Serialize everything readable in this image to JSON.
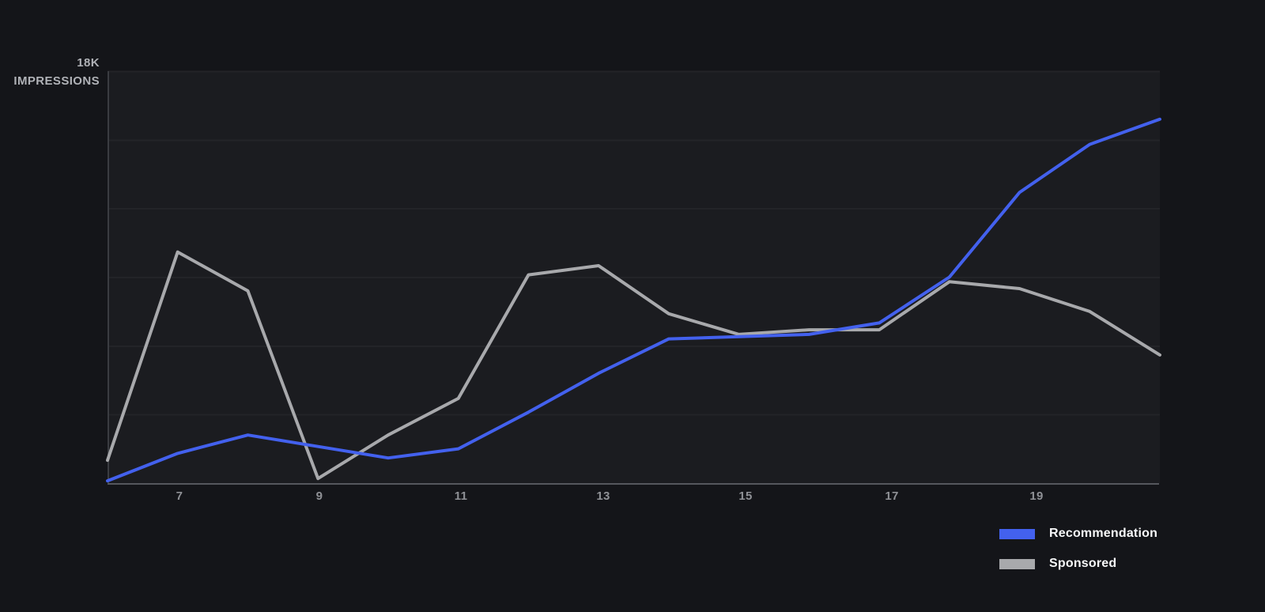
{
  "page": {
    "background": "#141519"
  },
  "chart": {
    "plot_background": "#1b1c20",
    "grid_color": "#232428",
    "y_axis_line_color": "#3a3c41",
    "x_axis_line_color": "#55575d",
    "tick_text_color": "#8f9196",
    "axis_label_text_color": "#b0b2b7"
  },
  "chart_data": {
    "type": "line",
    "title": "",
    "ylabel": "IMPRESSIONS",
    "y_max_label": "18K",
    "unit": "K impressions",
    "x": [
      6,
      7,
      8,
      9,
      10,
      11,
      12,
      13,
      14,
      15,
      16,
      17,
      18,
      19,
      20,
      21
    ],
    "xtick_labels": [
      "7",
      "9",
      "11",
      "13",
      "15",
      "17",
      "19"
    ],
    "xtick_values": [
      7,
      9,
      11,
      13,
      15,
      17,
      19
    ],
    "ylim_k": [
      0,
      18
    ],
    "grid_interval_k": 3,
    "grid": "horizontal",
    "legend_position": "bottom-right",
    "series": [
      {
        "name": "Sponsored",
        "color": "#a8a9ac",
        "values_k": [
          1.0,
          10.1,
          8.4,
          0.2,
          2.1,
          3.7,
          9.1,
          9.5,
          7.4,
          6.5,
          6.7,
          6.7,
          8.8,
          8.5,
          7.5,
          5.6
        ]
      },
      {
        "name": "Recommendation",
        "color": "#4361ee",
        "values_k": [
          0.1,
          1.3,
          2.1,
          1.6,
          1.1,
          1.5,
          3.1,
          4.8,
          6.3,
          6.4,
          6.5,
          7.0,
          9.0,
          12.7,
          14.8,
          15.9
        ]
      }
    ]
  },
  "legend": {
    "items": [
      {
        "label": "Recommendation",
        "color": "#4361ee"
      },
      {
        "label": "Sponsored",
        "color": "#a8a9ac"
      }
    ]
  }
}
